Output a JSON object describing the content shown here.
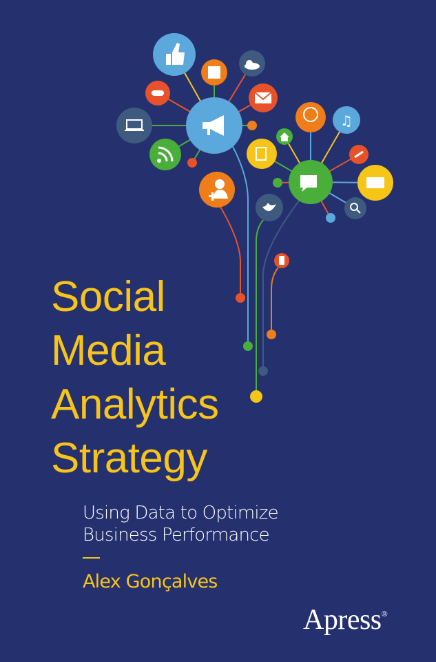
{
  "cover": {
    "title_lines": [
      "Social",
      "Media",
      "Analytics",
      "Strategy"
    ],
    "subtitle_lines": [
      "Using Data to Optimize",
      "Business Performance"
    ],
    "author": "Alex Gonçalves",
    "publisher": "Apress",
    "publisher_mark": "®"
  },
  "colors": {
    "background": "#25306f",
    "title": "#f7c41a",
    "light_blue": "#5aa8dc",
    "orange": "#ef7d1a",
    "red": "#e8522b",
    "green": "#4aae3b",
    "yellow": "#f5c518",
    "slate": "#3e5a7e"
  },
  "icons": [
    "thumbs-up-icon",
    "square-icon",
    "cloud-icon",
    "game-controller-icon",
    "email-icon",
    "laptop-icon",
    "megaphone-icon",
    "rss-icon",
    "add-user-icon",
    "globe-icon",
    "music-icon",
    "home-icon",
    "document-icon",
    "chat-icon",
    "link-icon",
    "film-icon",
    "search-icon",
    "twitter-icon",
    "phone-icon"
  ]
}
